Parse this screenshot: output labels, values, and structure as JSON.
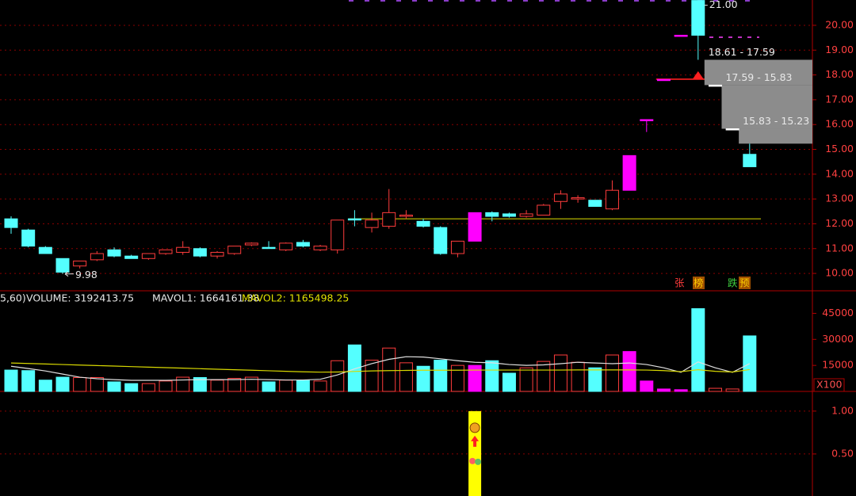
{
  "chart_data": [
    {
      "type": "candlestick",
      "open": [
        12.2,
        11.75,
        11.05,
        10.6,
        10.3,
        10.55,
        10.95,
        10.7,
        10.6,
        10.8,
        10.85,
        11.0,
        10.7,
        10.8,
        11.15,
        11.05,
        10.95,
        11.25,
        10.95,
        10.95,
        12.2,
        11.85,
        11.9,
        12.3,
        12.1,
        11.85,
        10.8,
        11.3,
        12.45,
        12.4,
        12.3,
        12.35,
        12.9,
        13.0,
        12.95,
        12.6,
        13.35,
        16.2,
        17.82,
        19.6,
        21.0,
        17.59,
        15.83,
        14.8
      ],
      "high": [
        12.3,
        11.8,
        11.1,
        10.6,
        10.5,
        10.9,
        11.05,
        10.75,
        10.8,
        10.95,
        11.3,
        11.05,
        10.9,
        11.1,
        11.25,
        11.3,
        11.25,
        11.35,
        11.15,
        12.15,
        12.55,
        12.45,
        13.4,
        12.55,
        12.2,
        11.9,
        11.3,
        12.45,
        12.5,
        12.45,
        12.55,
        12.8,
        13.35,
        13.15,
        12.95,
        13.75,
        14.75,
        16.2,
        17.82,
        19.6,
        21.0,
        17.59,
        15.83,
        15.23
      ],
      "low": [
        11.6,
        11.05,
        10.8,
        9.98,
        10.2,
        10.5,
        10.65,
        10.6,
        10.55,
        10.75,
        10.75,
        10.65,
        10.6,
        10.75,
        11.1,
        11.0,
        10.9,
        11.05,
        10.9,
        10.8,
        11.9,
        11.65,
        11.8,
        12.2,
        11.85,
        10.75,
        10.65,
        11.3,
        12.1,
        12.25,
        12.25,
        12.35,
        12.6,
        12.85,
        12.7,
        12.55,
        13.35,
        15.7,
        17.82,
        19.6,
        18.61,
        17.59,
        15.83,
        14.3
      ],
      "close": [
        11.85,
        11.1,
        10.8,
        10.05,
        10.5,
        10.8,
        10.7,
        10.6,
        10.8,
        10.95,
        11.05,
        10.7,
        10.85,
        11.1,
        11.22,
        11.04,
        11.22,
        11.1,
        11.1,
        12.15,
        12.18,
        12.15,
        12.45,
        12.35,
        11.9,
        10.8,
        11.3,
        12.45,
        12.3,
        12.3,
        12.4,
        12.75,
        13.2,
        13.05,
        12.7,
        13.35,
        14.75,
        16.2,
        17.82,
        19.6,
        19.6,
        17.59,
        15.83,
        14.3
      ],
      "up_color": "#ff3c3c",
      "down_color": "#54ffff",
      "limit_color": "#ff00ff",
      "flat_color": "#ffffff",
      "ylim": [
        9.3,
        21.02
      ],
      "yticks": [
        {
          "value": 10,
          "label": "10.00"
        },
        {
          "value": 11,
          "label": "11.00"
        },
        {
          "value": 12,
          "label": "12.00"
        },
        {
          "value": 13,
          "label": "13.00"
        },
        {
          "value": 14,
          "label": "14.00"
        },
        {
          "value": 15,
          "label": "15.00"
        },
        {
          "value": 16,
          "label": "16.00"
        },
        {
          "value": 17,
          "label": "17.00"
        },
        {
          "value": 18,
          "label": "18.00"
        },
        {
          "value": 19,
          "label": "19.00"
        },
        {
          "value": 20,
          "label": "20.00"
        }
      ],
      "grid": true,
      "lines": [
        {
          "value": 12.2,
          "color": "#c8c800"
        },
        {
          "value": 17.83,
          "color": "#ff2020"
        }
      ],
      "gaps": [
        {
          "label": "18.61 - 17.59",
          "high": 18.61,
          "low": 17.59
        },
        {
          "label": "17.59 - 15.83",
          "high": 17.59,
          "low": 15.83
        },
        {
          "label": "15.83 - 15.23",
          "high": 15.83,
          "low": 15.23
        }
      ],
      "annotations": [
        {
          "label": "21.00",
          "value": 21.0,
          "index": 40
        },
        {
          "label": "9.98",
          "value": 9.98,
          "index": 3
        }
      ],
      "tags": [
        "张",
        "榜",
        "跌",
        "预"
      ]
    },
    {
      "type": "volume",
      "header": [
        "5,60)",
        "VOLUME: 3192413.75",
        "MAVOL1: 1664161.38",
        "MAVOL2: 1165498.25"
      ],
      "values": [
        12300,
        12000,
        6500,
        8200,
        8000,
        8000,
        5500,
        4500,
        4500,
        6000,
        8200,
        8000,
        6500,
        7500,
        8200,
        5500,
        6500,
        6500,
        6000,
        17700,
        26800,
        18000,
        25000,
        16500,
        14500,
        18000,
        15000,
        15000,
        17700,
        10500,
        13600,
        17300,
        21000,
        16800,
        13600,
        21000,
        23000,
        6000,
        1400,
        1000,
        47700,
        1800,
        1400,
        32000
      ],
      "mavol1": [
        14500,
        13200,
        11800,
        10000,
        8200,
        7300,
        6800,
        6400,
        6400,
        6400,
        6600,
        6800,
        6800,
        6800,
        7000,
        6800,
        6600,
        6600,
        7000,
        9500,
        13000,
        16000,
        18500,
        20000,
        19800,
        18800,
        17700,
        16800,
        16500,
        15500,
        15000,
        15300,
        16000,
        16800,
        16400,
        16000,
        16400,
        15500,
        13600,
        11000,
        17000,
        13600,
        11000,
        16000
      ],
      "mavol2": [
        16400,
        16100,
        15800,
        15500,
        15200,
        14900,
        14600,
        14300,
        14000,
        13700,
        13400,
        13100,
        12800,
        12500,
        12200,
        11900,
        11600,
        11300,
        11100,
        11200,
        11500,
        11800,
        12000,
        12100,
        12200,
        12200,
        12200,
        12300,
        12300,
        12300,
        12300,
        12300,
        12300,
        12400,
        12400,
        12400,
        12400,
        12300,
        12000,
        11400,
        12500,
        11600,
        11200,
        12600
      ],
      "mavol1_color": "#e0e0e0",
      "mavol2_color": "#d8d800",
      "ylim": [
        0,
        58000
      ],
      "yticks": [
        45000,
        30000,
        15000
      ],
      "unit_label": "X100"
    },
    {
      "type": "signal",
      "values": [
        0,
        0,
        0,
        0,
        0,
        0,
        0,
        0,
        0,
        0,
        0,
        0,
        0,
        0,
        0,
        0,
        0,
        0,
        0,
        0,
        0,
        0,
        0,
        0,
        0,
        0,
        0,
        1,
        0,
        0,
        0,
        0,
        0,
        0,
        0,
        0,
        0,
        0,
        0,
        0,
        0,
        0,
        0,
        0
      ],
      "color": "#ffff00",
      "ylim": [
        0,
        1.23
      ],
      "yticks": [
        {
          "value": 1,
          "label": "1.00"
        },
        {
          "value": 0.5,
          "label": "0.50"
        }
      ],
      "grid": true
    }
  ]
}
